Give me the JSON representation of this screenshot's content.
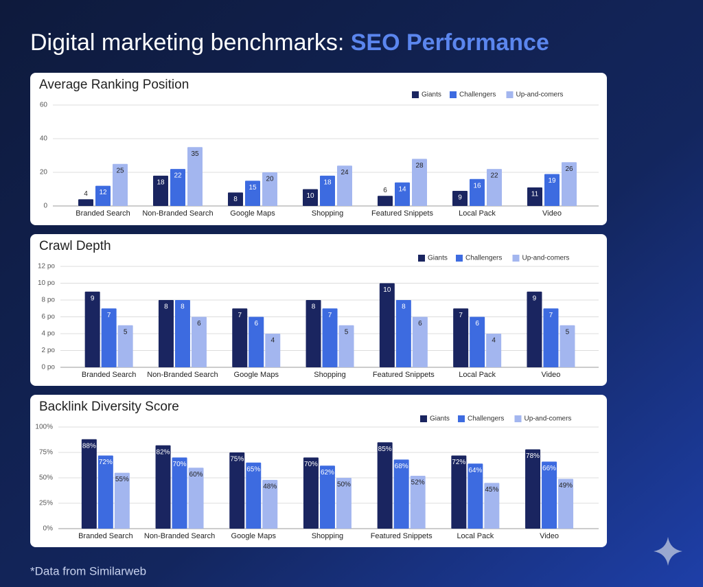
{
  "header": {
    "title": "Digital marketing benchmarks:",
    "highlight": "SEO Performance"
  },
  "footnote": "*Data from Similarweb",
  "chart_data": [
    {
      "type": "bar",
      "title": "Average Ranking Position",
      "categories": [
        "Branded Search",
        "Non-Branded Search",
        "Google Maps",
        "Shopping",
        "Featured Snippets",
        "Local Pack",
        "Video"
      ],
      "series": [
        {
          "name": "Giants",
          "color": "#1a2560",
          "values": [
            4,
            18,
            8,
            10,
            6,
            9,
            11
          ]
        },
        {
          "name": "Challengers",
          "color": "#3d6be0",
          "values": [
            12,
            22,
            15,
            18,
            14,
            16,
            19
          ]
        },
        {
          "name": "Up-and-comers",
          "color": "#a3b6ef",
          "values": [
            25,
            35,
            20,
            24,
            28,
            22,
            26
          ]
        }
      ],
      "ylim": [
        0,
        60
      ],
      "yticks": [
        0,
        20,
        40,
        60
      ],
      "grid": true,
      "legend": "top-right"
    },
    {
      "type": "bar",
      "title": "Crawl Depth",
      "categories": [
        "Branded Search",
        "Non-Branded Search",
        "Google Maps",
        "Shopping",
        "Featured Snippets",
        "Local Pack",
        "Video"
      ],
      "series": [
        {
          "name": "Giants",
          "color": "#1a2560",
          "values": [
            9,
            8,
            7,
            8,
            10,
            7,
            9
          ]
        },
        {
          "name": "Challengers",
          "color": "#3d6be0",
          "values": [
            7,
            8,
            6,
            7,
            8,
            6,
            7
          ]
        },
        {
          "name": "Up-and-comers",
          "color": "#a3b6ef",
          "values": [
            5,
            6,
            4,
            5,
            6,
            4,
            5
          ]
        }
      ],
      "ylim": [
        0,
        12
      ],
      "yticks": [
        {
          "value": 0,
          "label": "0 po"
        },
        {
          "value": 2,
          "label": "2 po"
        },
        {
          "value": 4,
          "label": "4 po"
        },
        {
          "value": 6,
          "label": "6 po"
        },
        {
          "value": 8,
          "label": "8 po"
        },
        {
          "value": 10,
          "label": "10 po"
        },
        {
          "value": 12,
          "label": "12 po"
        }
      ],
      "grid": true,
      "legend": "top-right"
    },
    {
      "type": "bar",
      "title": "Backlink Diversity Score",
      "categories": [
        "Branded Search",
        "Non-Branded Search",
        "Google Maps",
        "Shopping",
        "Featured Snippets",
        "Local Pack",
        "Video"
      ],
      "series": [
        {
          "name": "Giants",
          "color": "#1a2560",
          "values": [
            88,
            82,
            75,
            70,
            85,
            72,
            78
          ],
          "value_labels": [
            "88%",
            "82%",
            "75%",
            "70%",
            "85%",
            "72%",
            "78%"
          ]
        },
        {
          "name": "Challengers",
          "color": "#3d6be0",
          "values": [
            72,
            70,
            65,
            62,
            68,
            64,
            66
          ],
          "value_labels": [
            "72%",
            "70%",
            "65%",
            "62%",
            "68%",
            "64%",
            "66%"
          ]
        },
        {
          "name": "Up-and-comers",
          "color": "#a3b6ef",
          "values": [
            55,
            60,
            48,
            50,
            52,
            45,
            49
          ],
          "value_labels": [
            "55%",
            "60%",
            "48%",
            "50%",
            "52%",
            "45%",
            "49%"
          ]
        }
      ],
      "ylim": [
        0,
        100
      ],
      "yticks": [
        {
          "value": 0,
          "label": "0%"
        },
        {
          "value": 25,
          "label": "25%"
        },
        {
          "value": 50,
          "label": "50%"
        },
        {
          "value": 75,
          "label": "75%"
        },
        {
          "value": 100,
          "label": "100%"
        }
      ],
      "grid": true,
      "legend": "top-right"
    }
  ]
}
